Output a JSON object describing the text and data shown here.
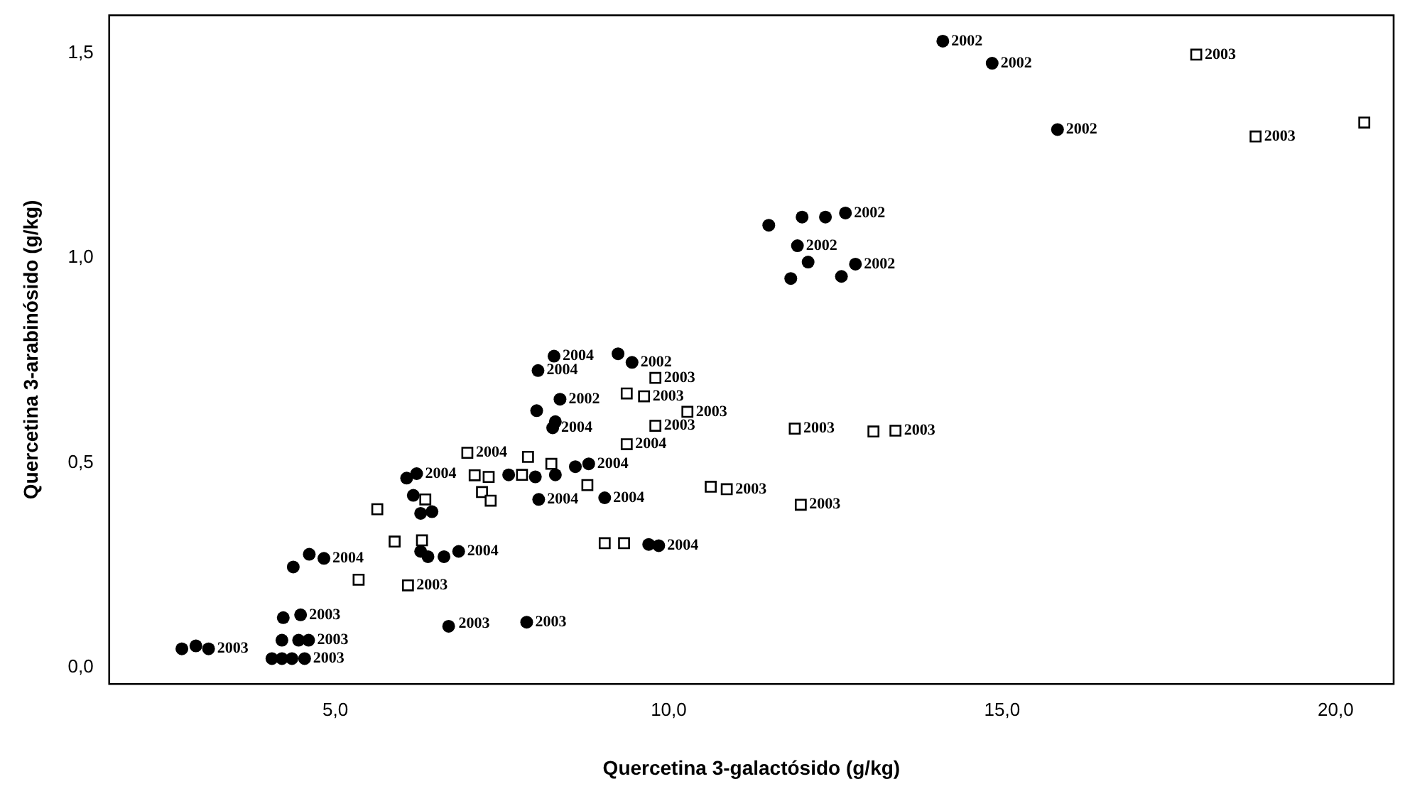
{
  "chart_data": {
    "type": "scatter",
    "xlabel": "Quercetina 3-galactósido (g/kg)",
    "ylabel": "Quercetina 3-arabinósido (g/kg)",
    "xlim": [
      1.61,
      20.87
    ],
    "ylim": [
      -0.041,
      1.593
    ],
    "xticks": [
      {
        "value": 5,
        "label": "5,0"
      },
      {
        "value": 10,
        "label": "10,0"
      },
      {
        "value": 15,
        "label": "15,0"
      },
      {
        "value": 20,
        "label": "20,0"
      }
    ],
    "yticks": [
      {
        "value": 0,
        "label": "0,0"
      },
      {
        "value": 0.5,
        "label": "0,5"
      },
      {
        "value": 1,
        "label": "1,0"
      },
      {
        "value": 1.5,
        "label": "1,5"
      }
    ],
    "grid": false,
    "legend": false,
    "series": [
      {
        "color": "#000000",
        "marker": "circle",
        "x": [
          14.11,
          14.85,
          15.83,
          11.5,
          12.0,
          12.35,
          12.65,
          11.93,
          12.09,
          12.8,
          11.83,
          12.59,
          8.28,
          8.04,
          9.24,
          9.45,
          8.37,
          8.02,
          8.3,
          8.26,
          9.04,
          9.7,
          9.85,
          6.07,
          6.22,
          7.6,
          8.0,
          8.3,
          8.6,
          8.8,
          6.17,
          8.05,
          6.28,
          6.45,
          6.28,
          6.39,
          6.63,
          6.85,
          4.61,
          4.83,
          4.37,
          4.22,
          4.48,
          6.7,
          7.87,
          4.2,
          4.45,
          4.6,
          2.7,
          2.91,
          3.1,
          4.05,
          4.2,
          4.35,
          4.54
        ],
        "values": [
          1.53,
          1.476,
          1.314,
          1.08,
          1.1,
          1.1,
          1.11,
          1.03,
          0.99,
          0.985,
          0.95,
          0.955,
          0.76,
          0.725,
          0.766,
          0.745,
          0.655,
          0.627,
          0.6,
          0.585,
          0.414,
          0.3,
          0.297,
          0.462,
          0.473,
          0.47,
          0.465,
          0.47,
          0.49,
          0.497,
          0.42,
          0.41,
          0.376,
          0.38,
          0.283,
          0.27,
          0.27,
          0.283,
          0.276,
          0.266,
          0.245,
          0.121,
          0.128,
          0.1,
          0.11,
          0.066,
          0.066,
          0.066,
          0.045,
          0.052,
          0.045,
          0.021,
          0.021,
          0.021,
          0.021
        ]
      },
      {
        "color": "#000000",
        "marker": "square",
        "x": [
          17.91,
          18.8,
          20.43,
          9.8,
          9.37,
          9.63,
          10.28,
          9.8,
          11.89,
          13.07,
          13.4,
          9.37,
          6.98,
          7.89,
          8.24,
          10.63,
          10.87,
          11.98,
          8.78,
          9.04,
          9.33,
          7.09,
          7.3,
          7.8,
          6.35,
          7.2,
          7.33,
          5.63,
          5.89,
          6.3,
          5.35,
          6.09
        ],
        "values": [
          1.497,
          1.297,
          1.331,
          0.707,
          0.669,
          0.662,
          0.624,
          0.59,
          0.583,
          0.576,
          0.578,
          0.545,
          0.524,
          0.514,
          0.497,
          0.441,
          0.435,
          0.397,
          0.445,
          0.303,
          0.303,
          0.469,
          0.465,
          0.47,
          0.41,
          0.428,
          0.407,
          0.386,
          0.307,
          0.31,
          0.214,
          0.2
        ]
      }
    ],
    "annotations": [
      {
        "text": "2002",
        "x": 14.11,
        "y": 1.53
      },
      {
        "text": "2002",
        "x": 14.85,
        "y": 1.476
      },
      {
        "text": "2002",
        "x": 15.83,
        "y": 1.314
      },
      {
        "text": "2003",
        "x": 17.91,
        "y": 1.497
      },
      {
        "text": "2003",
        "x": 18.8,
        "y": 1.297
      },
      {
        "text": "2002",
        "x": 12.65,
        "y": 1.11
      },
      {
        "text": "2002",
        "x": 11.93,
        "y": 1.03
      },
      {
        "text": "2002",
        "x": 12.8,
        "y": 0.985
      },
      {
        "text": "2004",
        "x": 8.28,
        "y": 0.76
      },
      {
        "text": "2004",
        "x": 8.04,
        "y": 0.725
      },
      {
        "text": "2002",
        "x": 9.45,
        "y": 0.745
      },
      {
        "text": "2003",
        "x": 9.8,
        "y": 0.707
      },
      {
        "text": "2003",
        "x": 9.63,
        "y": 0.662
      },
      {
        "text": "2002",
        "x": 8.37,
        "y": 0.655
      },
      {
        "text": "2004",
        "x": 8.26,
        "y": 0.585
      },
      {
        "text": "2003",
        "x": 10.28,
        "y": 0.624
      },
      {
        "text": "2003",
        "x": 9.8,
        "y": 0.59
      },
      {
        "text": "2003",
        "x": 11.89,
        "y": 0.583
      },
      {
        "text": "2003",
        "x": 13.4,
        "y": 0.578
      },
      {
        "text": "2004",
        "x": 9.37,
        "y": 0.545
      },
      {
        "text": "2004",
        "x": 6.98,
        "y": 0.524
      },
      {
        "text": "2004",
        "x": 8.8,
        "y": 0.497
      },
      {
        "text": "2004",
        "x": 6.22,
        "y": 0.473
      },
      {
        "text": "2003",
        "x": 10.87,
        "y": 0.435
      },
      {
        "text": "2003",
        "x": 11.98,
        "y": 0.397
      },
      {
        "text": "2004",
        "x": 9.04,
        "y": 0.414
      },
      {
        "text": "2004",
        "x": 8.05,
        "y": 0.41
      },
      {
        "text": "2004",
        "x": 9.85,
        "y": 0.297
      },
      {
        "text": "2004",
        "x": 6.85,
        "y": 0.283
      },
      {
        "text": "2004",
        "x": 4.83,
        "y": 0.266
      },
      {
        "text": "2003",
        "x": 6.09,
        "y": 0.2
      },
      {
        "text": "2003",
        "x": 4.48,
        "y": 0.128
      },
      {
        "text": "2003",
        "x": 6.72,
        "y": 0.107
      },
      {
        "text": "2003",
        "x": 7.87,
        "y": 0.11
      },
      {
        "text": "2003",
        "x": 4.6,
        "y": 0.066
      },
      {
        "text": "2003",
        "x": 3.1,
        "y": 0.045
      },
      {
        "text": "2003",
        "x": 4.54,
        "y": 0.021
      }
    ]
  }
}
